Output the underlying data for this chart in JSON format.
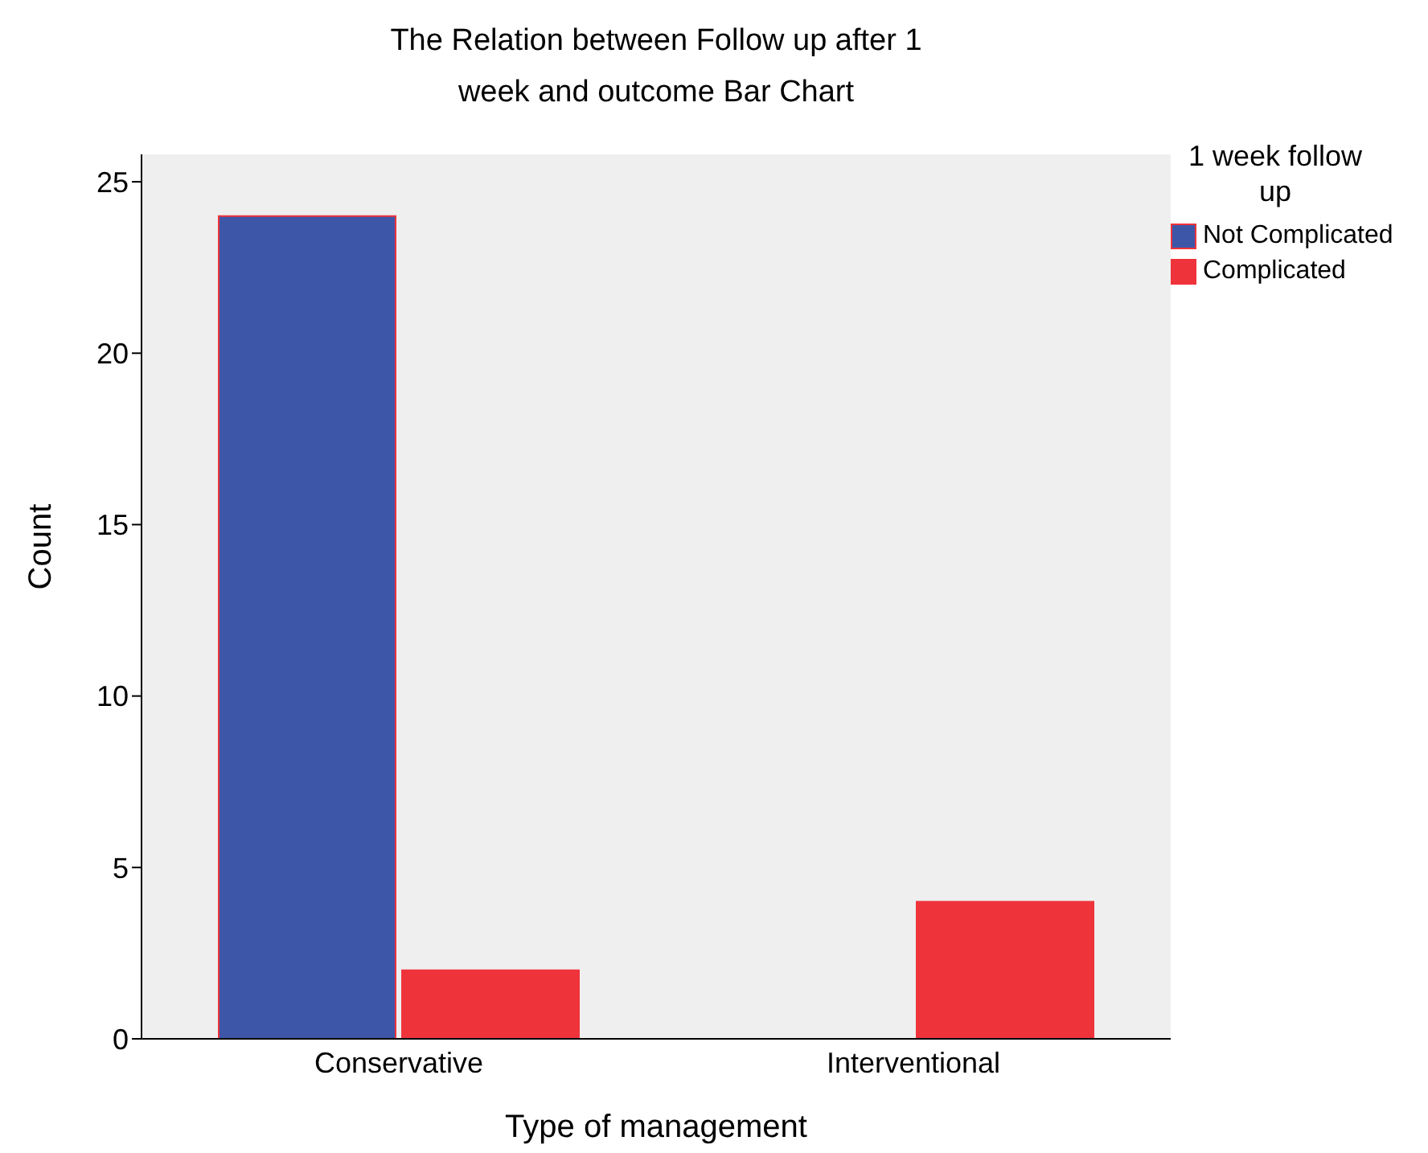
{
  "chart_data": {
    "type": "bar",
    "title": "The Relation between Follow up after 1 week and outcome Bar Chart",
    "xlabel": "Type of management",
    "ylabel": "Count",
    "legend_title": "1 week follow up",
    "categories": [
      "Conservative",
      "Interventional"
    ],
    "series": [
      {
        "name": "Not Complicated",
        "color": "#3e56a8",
        "values": [
          24,
          null
        ]
      },
      {
        "name": "Complicated",
        "color": "#ef333b",
        "values": [
          2,
          4
        ]
      }
    ],
    "ylim": [
      0,
      25.8
    ],
    "yticks": [
      0,
      5,
      10,
      15,
      20,
      25
    ],
    "grid": false,
    "legend": "top right"
  }
}
